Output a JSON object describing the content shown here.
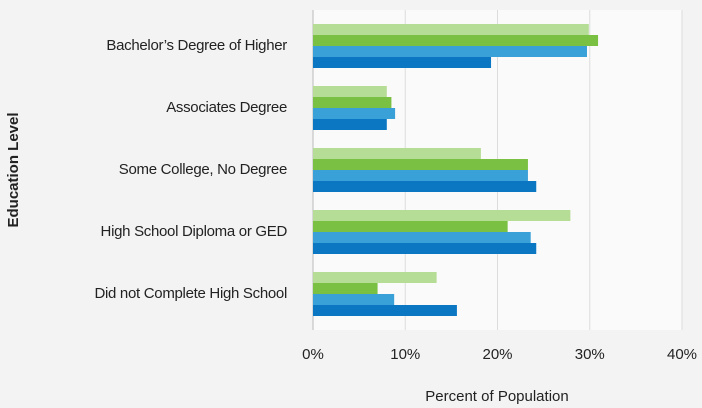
{
  "chart_data": {
    "type": "bar",
    "orientation": "horizontal",
    "xlabel": "Percent of Population",
    "ylabel": "Education Level",
    "categories": [
      "Bachelor’s Degree of Higher",
      "Associates Degree",
      "Some College, No Degree",
      "High School Diploma or GED",
      "Did not Complete High School"
    ],
    "series": [
      {
        "color": "#b6dd96",
        "values": [
          29.9,
          8.0,
          18.2,
          27.9,
          13.4
        ]
      },
      {
        "color": "#7ac143",
        "values": [
          30.9,
          8.5,
          23.3,
          21.1,
          7.0
        ]
      },
      {
        "color": "#3aa0d8",
        "values": [
          29.7,
          8.9,
          23.3,
          23.6,
          8.8
        ]
      },
      {
        "color": "#0b77c2",
        "values": [
          19.3,
          8.0,
          24.2,
          24.2,
          15.6
        ]
      }
    ],
    "xlim": [
      0,
      40
    ],
    "xticks": [
      {
        "value": 0,
        "label": "0%"
      },
      {
        "value": 10,
        "label": "10%"
      },
      {
        "value": 20,
        "label": "20%"
      },
      {
        "value": 30,
        "label": "30%"
      },
      {
        "value": 40,
        "label": "40%"
      }
    ],
    "grid": true
  }
}
